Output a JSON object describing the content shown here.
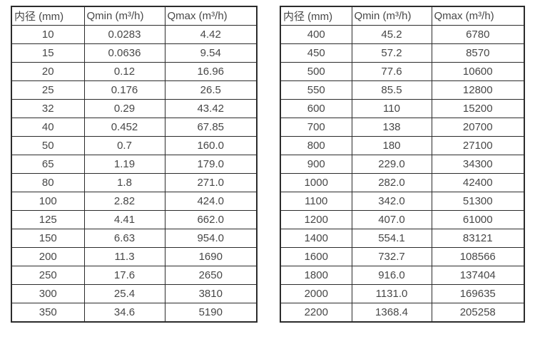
{
  "page": {
    "background_color": "#ffffff",
    "border_color": "#2b2b2b",
    "text_color": "#474747"
  },
  "chart_data": [
    {
      "type": "table",
      "name": "flow-spec-table-small-diameters",
      "columns": [
        "内径 (mm)",
        "Qmin (m³/h)",
        "Qmax (m³/h)"
      ],
      "rows": [
        [
          "10",
          "0.0283",
          "4.42"
        ],
        [
          "15",
          "0.0636",
          "9.54"
        ],
        [
          "20",
          "0.12",
          "16.96"
        ],
        [
          "25",
          "0.176",
          "26.5"
        ],
        [
          "32",
          "0.29",
          "43.42"
        ],
        [
          "40",
          "0.452",
          "67.85"
        ],
        [
          "50",
          "0.7",
          "160.0"
        ],
        [
          "65",
          "1.19",
          "179.0"
        ],
        [
          "80",
          "1.8",
          "271.0"
        ],
        [
          "100",
          "2.82",
          "424.0"
        ],
        [
          "125",
          "4.41",
          "662.0"
        ],
        [
          "150",
          "6.63",
          "954.0"
        ],
        [
          "200",
          "11.3",
          "1690"
        ],
        [
          "250",
          "17.6",
          "2650"
        ],
        [
          "300",
          "25.4",
          "3810"
        ],
        [
          "350",
          "34.6",
          "5190"
        ]
      ]
    },
    {
      "type": "table",
      "name": "flow-spec-table-large-diameters",
      "columns": [
        "内径 (mm)",
        "Qmin (m³/h)",
        "Qmax (m³/h)"
      ],
      "rows": [
        [
          "400",
          "45.2",
          "6780"
        ],
        [
          "450",
          "57.2",
          "8570"
        ],
        [
          "500",
          "77.6",
          "10600"
        ],
        [
          "550",
          "85.5",
          "12800"
        ],
        [
          "600",
          "110",
          "15200"
        ],
        [
          "700",
          "138",
          "20700"
        ],
        [
          "800",
          "180",
          "27100"
        ],
        [
          "900",
          "229.0",
          "34300"
        ],
        [
          "1000",
          "282.0",
          "42400"
        ],
        [
          "1100",
          "342.0",
          "51300"
        ],
        [
          "1200",
          "407.0",
          "61000"
        ],
        [
          "1400",
          "554.1",
          "83121"
        ],
        [
          "1600",
          "732.7",
          "108566"
        ],
        [
          "1800",
          "916.0",
          "137404"
        ],
        [
          "2000",
          "1131.0",
          "169635"
        ],
        [
          "2200",
          "1368.4",
          "205258"
        ]
      ]
    }
  ]
}
